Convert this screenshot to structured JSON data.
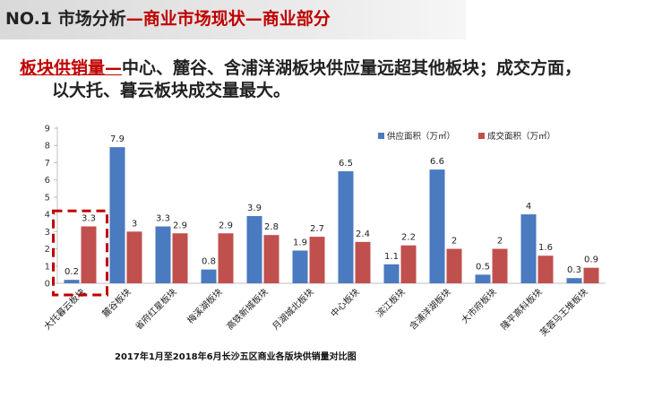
{
  "header": {
    "prefix": "NO.1 市场分析",
    "rest": "—商业市场现状—商业部分"
  },
  "headline": {
    "highlight": "板块供销量—",
    "rest": "中心、麓谷、含浦洋湖板块供应量远超其他板块；成交方面，",
    "line2": "以大托、暮云板块成交量最大。"
  },
  "caption": "2017年1月至2018年6月长沙五区商业各版块供销量对比图",
  "colors": {
    "supply": "#4a7ac0",
    "deal": "#c0504d",
    "highlight_box": "#c00000"
  },
  "chart_data": {
    "type": "bar",
    "title": "2017年1月至2018年6月长沙五区商业各版块供销量对比图",
    "categories": [
      "大托暮云板块",
      "麓谷板块",
      "省府红星板块",
      "梅溪湖板块",
      "高铁新城板块",
      "月湖城北板块",
      "中心板块",
      "滨江板块",
      "含浦洋湖板块",
      "大市府板块",
      "隆平高科板块",
      "芙蓉马王堆板块"
    ],
    "series": [
      {
        "name": "供应面积（万㎡）",
        "values": [
          0.2,
          7.9,
          3.3,
          0.8,
          3.9,
          1.9,
          6.5,
          1.1,
          6.6,
          0.5,
          4,
          0.3
        ]
      },
      {
        "name": "成交面积（万㎡）",
        "values": [
          3.3,
          3,
          2.9,
          2.9,
          2.8,
          2.7,
          2.4,
          2.2,
          2,
          2,
          1.6,
          0.9
        ]
      }
    ],
    "ylim": [
      0,
      9
    ],
    "yticks": [
      0,
      1,
      2,
      3,
      4,
      5,
      6,
      7,
      8,
      9
    ],
    "xlabel": "",
    "ylabel": "",
    "legend_position": "top-right",
    "highlighted_category": "大托暮云板块"
  }
}
